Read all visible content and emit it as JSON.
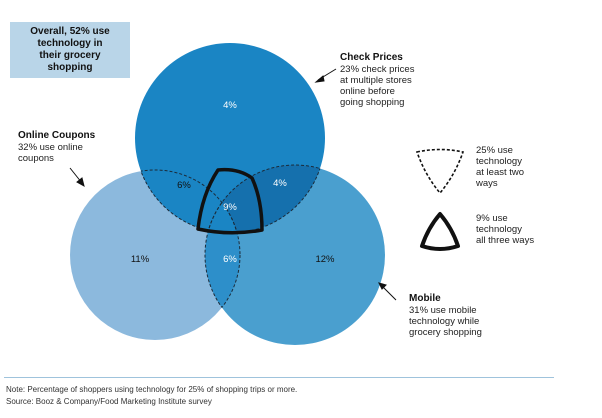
{
  "summary": "Overall, 52% use\ntechnology in\ntheir grocery\nshopping",
  "sets": [
    {
      "name": "Check Prices",
      "description": "23% check prices\nat multiple stores\nonline before\ngoing shopping"
    },
    {
      "name": "Online Coupons",
      "description": "32% use online\ncoupons"
    },
    {
      "name": "Mobile",
      "description": "31% use mobile\ntechnology while\ngrocery shopping"
    }
  ],
  "regions": {
    "check_only": "4%",
    "coupons_only": "11%",
    "mobile_only": "12%",
    "coupons_check": "6%",
    "check_mobile": "4%",
    "coupons_mobile": "6%",
    "all_three": "9%"
  },
  "legend": {
    "dashed": "25% use\ntechnology\nat least two\nways",
    "solid": "9% use\ntechnology\nall three ways"
  },
  "colors": {
    "top_circle": "#1a85c4",
    "left_circle": "#8cb9dd",
    "right_circle": "#4a9fcf",
    "summary_box": "#b9d5e8"
  },
  "footer": {
    "note": "Note: Percentage of shoppers using technology for 25% of shopping trips or more.",
    "source": "Source: Booz & Company/Food Marketing Institute survey"
  }
}
